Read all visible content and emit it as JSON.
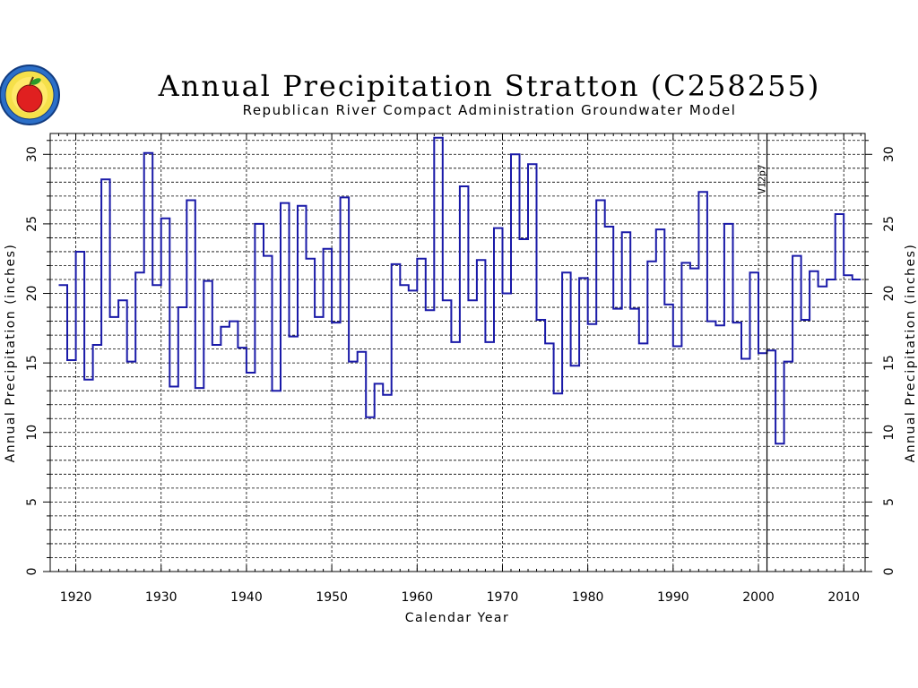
{
  "chart_data": {
    "type": "line",
    "step": true,
    "title": "Annual Precipitation Stratton (C258255)",
    "subtitle": "Republican River Compact Administration Groundwater Model",
    "xlabel": "Calendar Year",
    "ylabel_left": "Annual Precipitation (inches)",
    "ylabel_right": "Annual Precipitation (inches)",
    "xlim": [
      1917,
      2012.5
    ],
    "ylim": [
      0,
      31.5
    ],
    "xticks": [
      1920,
      1930,
      1940,
      1950,
      1960,
      1970,
      1980,
      1990,
      2000,
      2010
    ],
    "yticks": [
      0,
      5,
      10,
      15,
      20,
      25,
      30
    ],
    "grid": true,
    "series_color": "#1a1aa8",
    "marker": {
      "x": 2001,
      "label": "V12p7",
      "color": "#000000"
    },
    "x": [
      1918,
      1919,
      1920,
      1921,
      1922,
      1923,
      1924,
      1925,
      1926,
      1927,
      1928,
      1929,
      1930,
      1931,
      1932,
      1933,
      1934,
      1935,
      1936,
      1937,
      1938,
      1939,
      1940,
      1941,
      1942,
      1943,
      1944,
      1945,
      1946,
      1947,
      1948,
      1949,
      1950,
      1951,
      1952,
      1953,
      1954,
      1955,
      1956,
      1957,
      1958,
      1959,
      1960,
      1961,
      1962,
      1963,
      1964,
      1965,
      1966,
      1967,
      1968,
      1969,
      1970,
      1971,
      1972,
      1973,
      1974,
      1975,
      1976,
      1977,
      1978,
      1979,
      1980,
      1981,
      1982,
      1983,
      1984,
      1985,
      1986,
      1987,
      1988,
      1989,
      1990,
      1991,
      1992,
      1993,
      1994,
      1995,
      1996,
      1997,
      1998,
      1999,
      2000,
      2001,
      2002,
      2003,
      2004,
      2005,
      2006,
      2007,
      2008,
      2009,
      2010,
      2011
    ],
    "values": [
      20.6,
      15.2,
      23.0,
      13.8,
      16.3,
      28.2,
      18.3,
      19.5,
      15.1,
      21.5,
      30.1,
      20.6,
      25.4,
      13.3,
      19.0,
      26.7,
      13.2,
      20.9,
      16.3,
      17.6,
      18.0,
      16.1,
      14.3,
      25.0,
      22.7,
      13.0,
      26.5,
      16.9,
      26.3,
      22.5,
      18.3,
      23.2,
      17.9,
      26.9,
      15.1,
      15.8,
      11.1,
      13.5,
      12.7,
      22.1,
      20.6,
      20.2,
      22.5,
      18.8,
      31.2,
      19.5,
      16.5,
      27.7,
      19.5,
      22.4,
      16.5,
      24.7,
      20.0,
      30.0,
      23.9,
      29.3,
      18.1,
      16.4,
      12.8,
      21.5,
      14.8,
      21.1,
      17.8,
      26.7,
      24.8,
      18.9,
      24.4,
      18.9,
      16.4,
      22.3,
      24.6,
      19.2,
      16.2,
      22.2,
      21.8,
      27.3,
      18.0,
      17.7,
      25.0,
      17.9,
      15.3,
      21.5,
      15.7,
      15.9,
      9.2,
      15.1,
      22.7,
      18.1,
      21.6,
      20.5,
      21.0,
      25.7,
      21.3,
      21.0
    ]
  },
  "logo": {
    "description_icon": "apple-seal-logo"
  }
}
